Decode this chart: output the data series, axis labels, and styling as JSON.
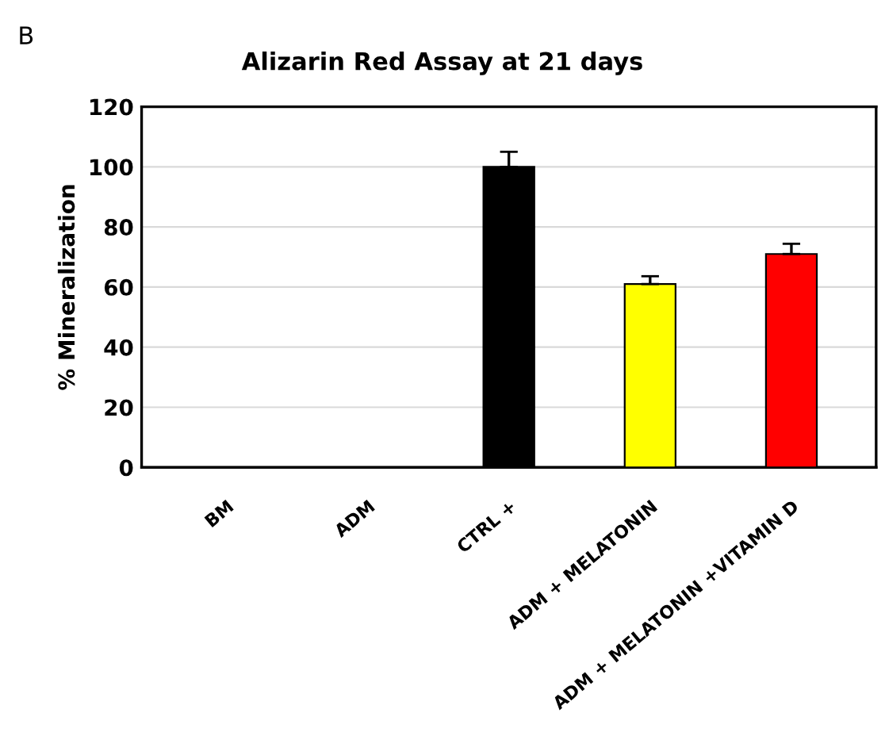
{
  "chart_data": {
    "type": "bar",
    "title": "Alizarin Red Assay at 21 days",
    "ylabel": "% Mineralization",
    "categories": [
      "BM",
      "ADM",
      "CTRL +",
      "ADM + MELATONIN",
      "ADM + MELATONIN +VITAMIN D"
    ],
    "values": [
      0,
      0,
      100,
      61,
      71
    ],
    "errors": [
      null,
      null,
      5,
      2.6,
      3.4
    ],
    "colors": [
      null,
      null,
      "#000000",
      "#ffff00",
      "#ff0000"
    ],
    "ylim": [
      0,
      120
    ],
    "yticks": [
      0,
      20,
      40,
      60,
      80,
      100,
      120
    ],
    "grid": "y",
    "annotations": [
      "B"
    ]
  }
}
